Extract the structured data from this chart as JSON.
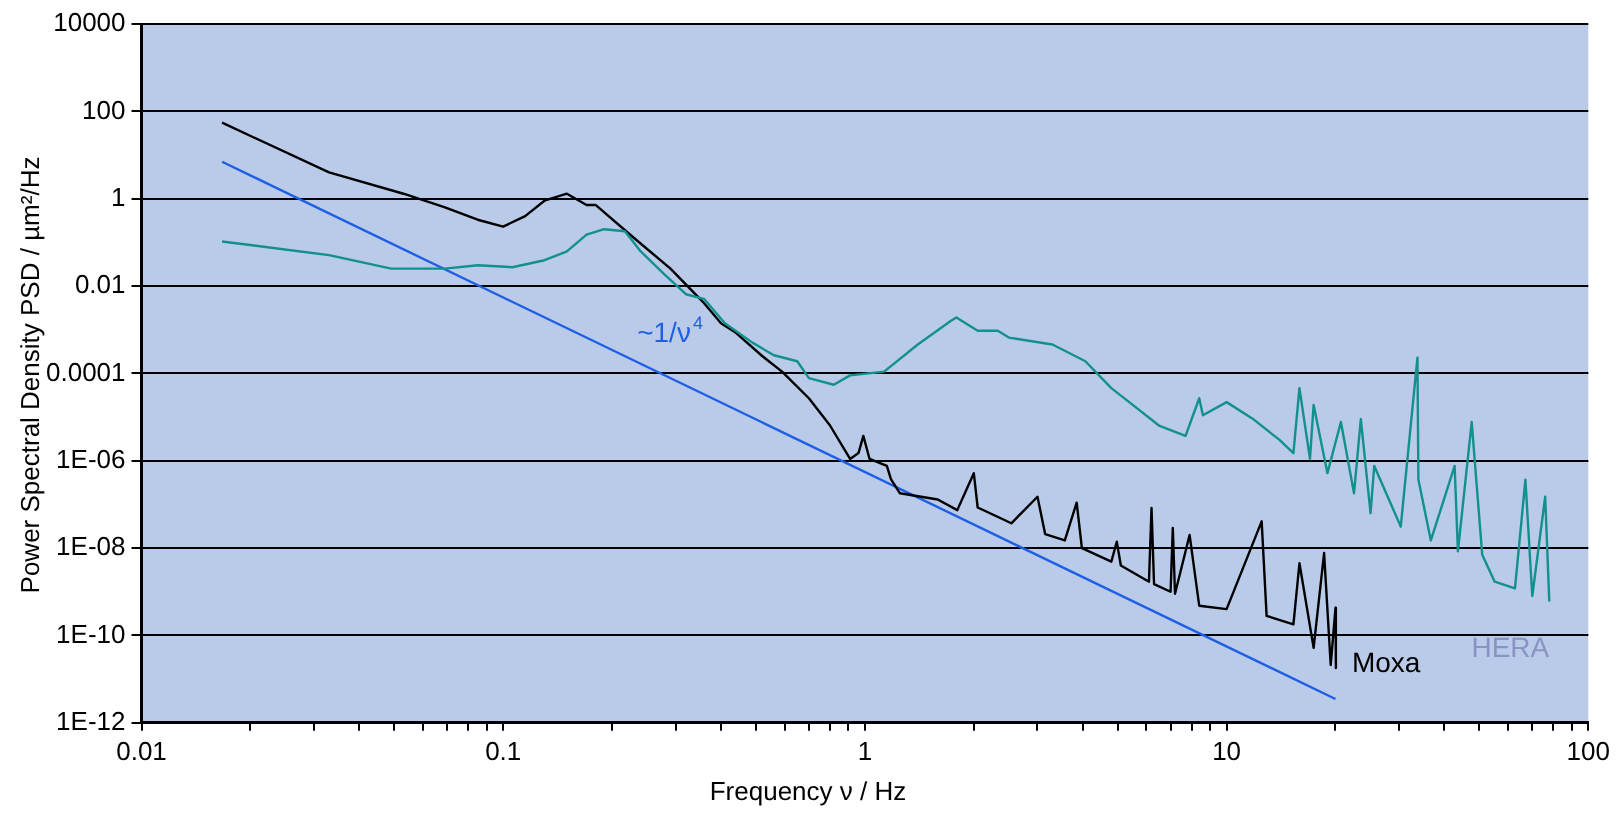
{
  "chart_data": {
    "type": "line",
    "xlabel": "Frequency ν / Hz",
    "ylabel": "Power Spectral Density  PSD / µm²/Hz",
    "log": "xy",
    "grid": "y",
    "legend": false,
    "marker": "none",
    "line_style": "solid",
    "xlim": [
      0.01,
      100
    ],
    "ylim": [
      1e-12,
      10000
    ],
    "xticks": [
      0.01,
      {
        "value": 0.02,
        "label": null
      },
      {
        "value": 0.03,
        "label": null
      },
      {
        "value": 0.04,
        "label": null
      },
      {
        "value": 0.05,
        "label": null
      },
      {
        "value": 0.06,
        "label": null
      },
      {
        "value": 0.07,
        "label": null
      },
      {
        "value": 0.08,
        "label": null
      },
      {
        "value": 0.09,
        "label": null
      },
      0.1,
      {
        "value": 0.2,
        "label": null
      },
      {
        "value": 0.3,
        "label": null
      },
      {
        "value": 0.4,
        "label": null
      },
      {
        "value": 0.5,
        "label": null
      },
      {
        "value": 0.6,
        "label": null
      },
      {
        "value": 0.7,
        "label": null
      },
      {
        "value": 0.8,
        "label": null
      },
      {
        "value": 0.9,
        "label": null
      },
      1,
      {
        "value": 2,
        "label": null
      },
      {
        "value": 3,
        "label": null
      },
      {
        "value": 4,
        "label": null
      },
      {
        "value": 5,
        "label": null
      },
      {
        "value": 6,
        "label": null
      },
      {
        "value": 7,
        "label": null
      },
      {
        "value": 8,
        "label": null
      },
      {
        "value": 9,
        "label": null
      },
      10,
      {
        "value": 20,
        "label": null
      },
      {
        "value": 30,
        "label": null
      },
      {
        "value": 40,
        "label": null
      },
      {
        "value": 50,
        "label": null
      },
      {
        "value": 60,
        "label": null
      },
      {
        "value": 70,
        "label": null
      },
      {
        "value": 80,
        "label": null
      },
      {
        "value": 90,
        "label": null
      },
      100
    ],
    "yticks": [
      {
        "value": 1e-12,
        "label": "1E-12"
      },
      {
        "value": 1e-10,
        "label": "1E-10"
      },
      {
        "value": 1e-08,
        "label": "1E-08"
      },
      {
        "value": 1e-06,
        "label": "1E-06"
      },
      0.0001,
      0.01,
      1,
      100,
      10000
    ],
    "series": [
      {
        "name": "HERA",
        "color": "#12908e",
        "x": [
          0.0167,
          0.033,
          0.049,
          0.069,
          0.085,
          0.106,
          0.13,
          0.15,
          0.17,
          0.19,
          0.217,
          0.24,
          0.28,
          0.32,
          0.36,
          0.41,
          0.49,
          0.56,
          0.65,
          0.7,
          0.82,
          0.91,
          1.13,
          1.4,
          1.73,
          1.79,
          2.05,
          2.33,
          2.5,
          3.3,
          4.07,
          4.8,
          5.5,
          6.5,
          7.7,
          8.4,
          8.6,
          10,
          11.8,
          14,
          15.3,
          15.9,
          17,
          17.4,
          19,
          20.7,
          22.5,
          23.5,
          25,
          25.6,
          30.3,
          33.7,
          33.9,
          36.7,
          42.7,
          43.6,
          47.6,
          50.9,
          55.1,
          62.7,
          67,
          70,
          76,
          78
        ],
        "values": [
          0.105,
          0.051,
          0.025,
          0.025,
          0.03,
          0.027,
          0.039,
          0.062,
          0.15,
          0.2,
          0.18,
          0.062,
          0.018,
          0.0065,
          0.005,
          0.0014,
          0.0005,
          0.00026,
          0.00019,
          7.8e-05,
          5.5e-05,
          9e-05,
          0.00011,
          0.00046,
          0.0016,
          0.0019,
          0.00095,
          0.00095,
          0.00066,
          0.00046,
          0.00019,
          4.6e-05,
          1.9e-05,
          6.4e-06,
          3.7e-06,
          2.7e-05,
          1.1e-05,
          2.2e-05,
          9.2e-06,
          3e-06,
          1.5e-06,
          4.6e-05,
          1.1e-06,
          1.9e-05,
          5.2e-07,
          7.7e-06,
          1.8e-07,
          9e-06,
          6.3e-08,
          7.6e-07,
          3.1e-08,
          0.00023,
          3.7e-07,
          1.5e-08,
          7.6e-07,
          8.4e-09,
          7.7e-06,
          7e-09,
          1.7e-09,
          1.2e-09,
          3.7e-07,
          8e-10,
          1.5e-07,
          6e-10
        ]
      },
      {
        "name": "Moxa",
        "color": "#000000",
        "x": [
          0.0167,
          0.033,
          0.053,
          0.069,
          0.085,
          0.1,
          0.115,
          0.13,
          0.15,
          0.17,
          0.18,
          0.23,
          0.29,
          0.357,
          0.4,
          0.44,
          0.52,
          0.59,
          0.7,
          0.8,
          0.91,
          0.96,
          0.99,
          1.03,
          1.15,
          1.18,
          1.25,
          1.59,
          1.8,
          2.0,
          2.05,
          2.54,
          3.0,
          3.15,
          3.57,
          3.85,
          3.98,
          4.8,
          4.97,
          5.1,
          6.1,
          6.2,
          6.3,
          7.0,
          7.1,
          7.2,
          7.9,
          8.4,
          10,
          12.5,
          12.9,
          15.3,
          15.9,
          17.4,
          18.6,
          19.4,
          20,
          20.05
        ],
        "values": [
          55,
          4,
          1.3,
          0.63,
          0.33,
          0.23,
          0.4,
          0.9,
          1.3,
          0.72,
          0.72,
          0.126,
          0.025,
          0.0043,
          0.0014,
          0.00085,
          0.00025,
          0.00011,
          2.7e-05,
          6.5e-06,
          1.1e-06,
          1.5e-06,
          3.7e-06,
          1.1e-06,
          7.6e-07,
          3.8e-07,
          1.8e-07,
          1.3e-07,
          7.4e-08,
          5.2e-07,
          8.5e-08,
          3.7e-08,
          1.5e-07,
          2.1e-08,
          1.5e-08,
          1.1e-07,
          1e-08,
          4.9e-09,
          1.4e-08,
          4e-09,
          1.7e-09,
          8.3e-08,
          1.5e-09,
          1e-09,
          2.9e-08,
          9e-10,
          2e-08,
          4.8e-10,
          4e-10,
          4.1e-08,
          2.8e-10,
          1.8e-10,
          4.5e-09,
          5.2e-11,
          7.7e-09,
          2.1e-11,
          4.3e-10,
          1.8e-11
        ]
      },
      {
        "name": "~1/ν$^{4}$",
        "color": "#1f5fe6",
        "x": [
          0.0167,
          20
        ],
        "values": [
          7,
          3.5e-12
        ]
      }
    ]
  }
}
